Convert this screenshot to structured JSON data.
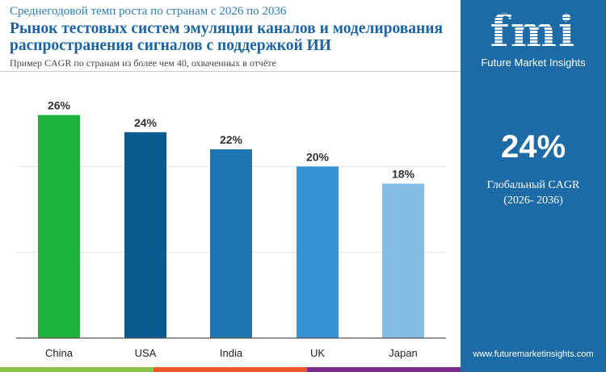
{
  "header": {
    "subtitle": "Среднегодовой темп роста по странам с 2026 по 2036",
    "title": "Рынок тестовых систем эмуляции каналов и моделирования распространения сигналов с поддержкой ИИ",
    "note": "Пример CAGR по странам из более чем 40, охваченных в отчёте"
  },
  "panel": {
    "logo_text": "fmi",
    "brand": "Future Market Insights",
    "cagr": "24%",
    "cagr_label": "Глобальный CAGR",
    "cagr_period": "(2026- 2036)",
    "website": "www.futuremarketinsights.com",
    "background": "#1c6aa6"
  },
  "stripes": [
    "#8bc34a",
    "#e8582b",
    "#7b2d8b"
  ],
  "chart_data": {
    "type": "bar",
    "categories": [
      "China",
      "USA",
      "India",
      "UK",
      "Japan"
    ],
    "values": [
      26,
      24,
      22,
      20,
      18
    ],
    "data_labels": [
      "26%",
      "24%",
      "22%",
      "20%",
      "18%"
    ],
    "colors": [
      "#1db33a",
      "#0c5a92",
      "#1f74b2",
      "#3594d4",
      "#84bde3"
    ],
    "ylim": [
      0,
      30
    ],
    "grid": true,
    "gridlines": [
      10,
      20
    ]
  }
}
